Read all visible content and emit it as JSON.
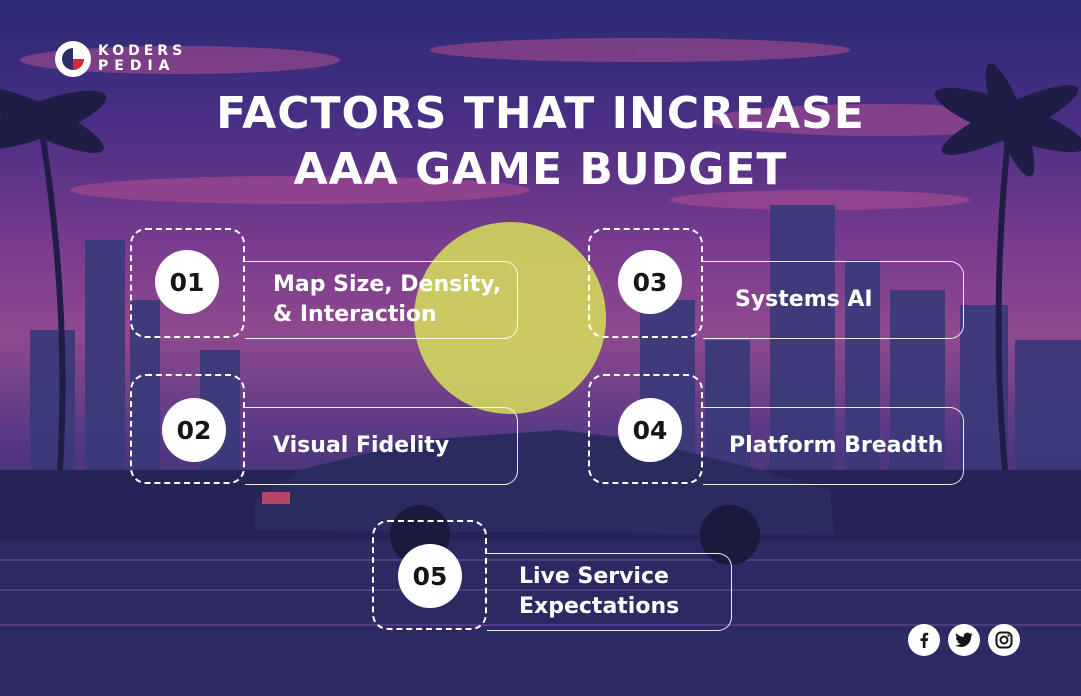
{
  "brand": {
    "line1": "KODERS",
    "line2": "PEDIA"
  },
  "title": {
    "line1": "FACTORS THAT INCREASE",
    "line2": "AAA GAME BUDGET"
  },
  "factors": [
    {
      "number": "01",
      "label_line1": "Map Size, Density,",
      "label_line2": "& Interaction"
    },
    {
      "number": "02",
      "label_line1": "Visual Fidelity",
      "label_line2": ""
    },
    {
      "number": "03",
      "label_line1": "Systems AI",
      "label_line2": ""
    },
    {
      "number": "04",
      "label_line1": "Platform Breadth",
      "label_line2": ""
    },
    {
      "number": "05",
      "label_line1": "Live Service",
      "label_line2": "Expectations"
    }
  ],
  "social": {
    "icons": [
      "facebook-icon",
      "twitter-icon",
      "instagram-icon"
    ]
  },
  "colors": {
    "sun": "#d6e05a",
    "accent_red": "#d9283a",
    "text": "#ffffff"
  }
}
